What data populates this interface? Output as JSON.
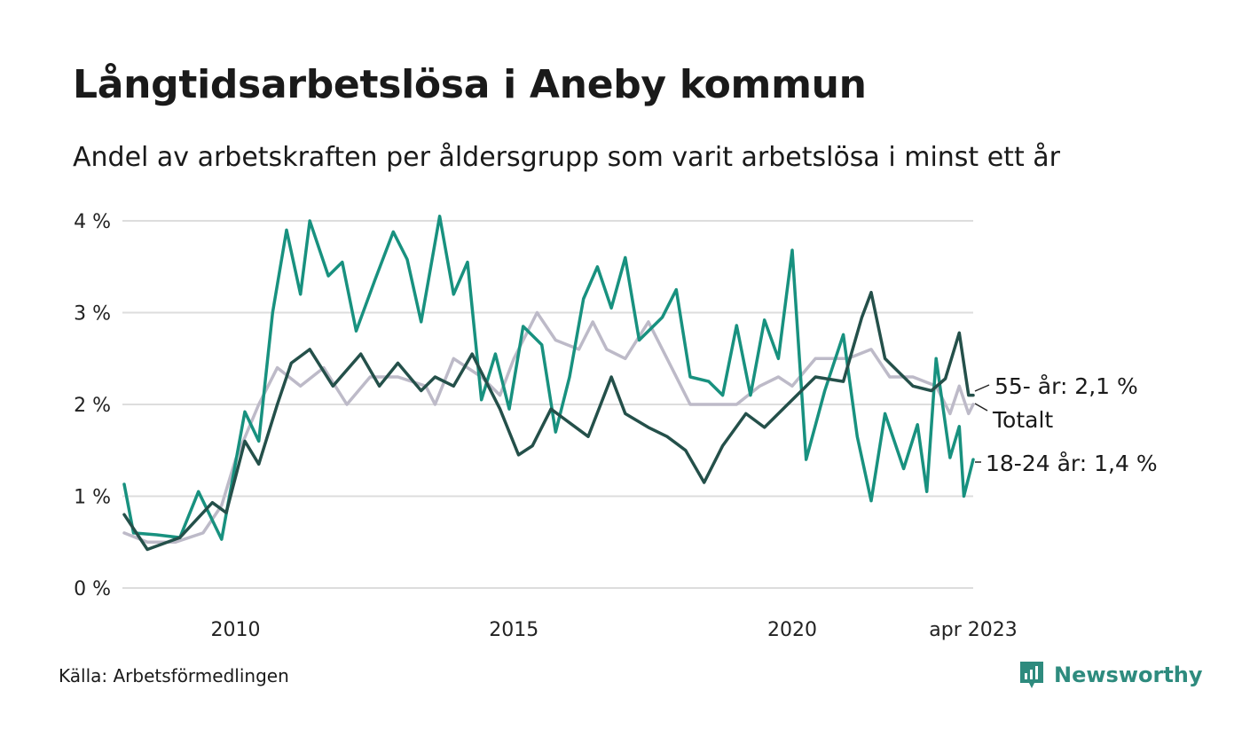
{
  "title": "Långtidsarbetslösa i Aneby kommun",
  "subtitle": "Andel av arbetskraften per åldersgrupp som varit arbetslösa i minst ett år",
  "source": "Källa: Arbetsförmedlingen",
  "brand": "Newsworthy",
  "colors": {
    "youth": "#18917f",
    "old": "#24504a",
    "total": "#bdbac8",
    "grid": "#dddddd",
    "brand": "#2e8b7e"
  },
  "chart_data": {
    "type": "line",
    "y_unit": "%",
    "ylim": [
      0,
      4.1
    ],
    "y_ticks": [
      {
        "v": 0,
        "label": "0 %"
      },
      {
        "v": 1,
        "label": "1 %"
      },
      {
        "v": 2,
        "label": "2 %"
      },
      {
        "v": 3,
        "label": "3 %"
      },
      {
        "v": 4,
        "label": "4 %"
      }
    ],
    "x_ticks": [
      {
        "x": "2010-01",
        "label": "2010"
      },
      {
        "x": "2015-01",
        "label": "2015"
      },
      {
        "x": "2020-01",
        "label": "2020"
      },
      {
        "x": "2023-04",
        "label": "apr 2023"
      }
    ],
    "x_range": [
      "2008-01",
      "2023-04"
    ],
    "grid": true,
    "series": [
      {
        "name": "Totalt",
        "label": "Totalt",
        "color": "#bdbac8",
        "points": [
          [
            "2008-01",
            0.6
          ],
          [
            "2008-06",
            0.5
          ],
          [
            "2008-12",
            0.5
          ],
          [
            "2009-06",
            0.6
          ],
          [
            "2009-10",
            0.9
          ],
          [
            "2010-01",
            1.4
          ],
          [
            "2010-06",
            2.0
          ],
          [
            "2010-10",
            2.4
          ],
          [
            "2011-03",
            2.2
          ],
          [
            "2011-08",
            2.4
          ],
          [
            "2012-01",
            2.0
          ],
          [
            "2012-06",
            2.3
          ],
          [
            "2012-12",
            2.3
          ],
          [
            "2013-06",
            2.2
          ],
          [
            "2013-08",
            2.0
          ],
          [
            "2013-12",
            2.5
          ],
          [
            "2014-06",
            2.3
          ],
          [
            "2014-10",
            2.1
          ],
          [
            "2015-01",
            2.5
          ],
          [
            "2015-06",
            3.0
          ],
          [
            "2015-10",
            2.7
          ],
          [
            "2016-03",
            2.6
          ],
          [
            "2016-06",
            2.9
          ],
          [
            "2016-09",
            2.6
          ],
          [
            "2017-01",
            2.5
          ],
          [
            "2017-06",
            2.9
          ],
          [
            "2017-10",
            2.5
          ],
          [
            "2018-03",
            2.0
          ],
          [
            "2018-08",
            2.0
          ],
          [
            "2019-01",
            2.0
          ],
          [
            "2019-06",
            2.2
          ],
          [
            "2019-10",
            2.3
          ],
          [
            "2020-01",
            2.2
          ],
          [
            "2020-06",
            2.5
          ],
          [
            "2021-01",
            2.5
          ],
          [
            "2021-06",
            2.6
          ],
          [
            "2021-10",
            2.3
          ],
          [
            "2022-03",
            2.3
          ],
          [
            "2022-08",
            2.2
          ],
          [
            "2022-11",
            1.9
          ],
          [
            "2023-01",
            2.2
          ],
          [
            "2023-03",
            1.9
          ],
          [
            "2023-04",
            2.0
          ]
        ]
      },
      {
        "name": "18-24 år",
        "label": "18-24 år: 1,4 %",
        "color": "#18917f",
        "points": [
          [
            "2008-01",
            1.13
          ],
          [
            "2008-03",
            0.6
          ],
          [
            "2008-08",
            0.58
          ],
          [
            "2009-01",
            0.55
          ],
          [
            "2009-05",
            1.05
          ],
          [
            "2009-10",
            0.53
          ],
          [
            "2010-03",
            1.92
          ],
          [
            "2010-06",
            1.6
          ],
          [
            "2010-09",
            3.0
          ],
          [
            "2010-12",
            3.9
          ],
          [
            "2011-03",
            3.2
          ],
          [
            "2011-05",
            4.0
          ],
          [
            "2011-09",
            3.4
          ],
          [
            "2011-12",
            3.55
          ],
          [
            "2012-03",
            2.8
          ],
          [
            "2012-07",
            3.35
          ],
          [
            "2012-11",
            3.88
          ],
          [
            "2013-02",
            3.58
          ],
          [
            "2013-05",
            2.9
          ],
          [
            "2013-09",
            4.05
          ],
          [
            "2013-12",
            3.2
          ],
          [
            "2014-03",
            3.55
          ],
          [
            "2014-06",
            2.05
          ],
          [
            "2014-09",
            2.55
          ],
          [
            "2014-12",
            1.95
          ],
          [
            "2015-03",
            2.85
          ],
          [
            "2015-07",
            2.65
          ],
          [
            "2015-10",
            1.7
          ],
          [
            "2016-01",
            2.3
          ],
          [
            "2016-04",
            3.15
          ],
          [
            "2016-07",
            3.5
          ],
          [
            "2016-10",
            3.05
          ],
          [
            "2017-01",
            3.6
          ],
          [
            "2017-04",
            2.7
          ],
          [
            "2017-09",
            2.95
          ],
          [
            "2017-12",
            3.25
          ],
          [
            "2018-03",
            2.3
          ],
          [
            "2018-07",
            2.25
          ],
          [
            "2018-10",
            2.1
          ],
          [
            "2019-01",
            2.86
          ],
          [
            "2019-04",
            2.1
          ],
          [
            "2019-07",
            2.92
          ],
          [
            "2019-10",
            2.5
          ],
          [
            "2020-01",
            3.68
          ],
          [
            "2020-04",
            1.4
          ],
          [
            "2020-08",
            2.15
          ],
          [
            "2020-12",
            2.76
          ],
          [
            "2021-03",
            1.65
          ],
          [
            "2021-06",
            0.95
          ],
          [
            "2021-09",
            1.9
          ],
          [
            "2022-01",
            1.3
          ],
          [
            "2022-04",
            1.78
          ],
          [
            "2022-06",
            1.05
          ],
          [
            "2022-08",
            2.5
          ],
          [
            "2022-11",
            1.42
          ],
          [
            "2023-01",
            1.76
          ],
          [
            "2023-02",
            1.0
          ],
          [
            "2023-04",
            1.4
          ]
        ]
      },
      {
        "name": "55- år",
        "label": "55- år: 2,1 %",
        "color": "#24504a",
        "points": [
          [
            "2008-01",
            0.8
          ],
          [
            "2008-06",
            0.42
          ],
          [
            "2009-01",
            0.55
          ],
          [
            "2009-08",
            0.93
          ],
          [
            "2009-11",
            0.82
          ],
          [
            "2010-03",
            1.6
          ],
          [
            "2010-06",
            1.35
          ],
          [
            "2010-10",
            2.0
          ],
          [
            "2011-01",
            2.45
          ],
          [
            "2011-05",
            2.6
          ],
          [
            "2011-10",
            2.2
          ],
          [
            "2012-04",
            2.55
          ],
          [
            "2012-08",
            2.2
          ],
          [
            "2012-12",
            2.45
          ],
          [
            "2013-05",
            2.15
          ],
          [
            "2013-08",
            2.3
          ],
          [
            "2013-12",
            2.2
          ],
          [
            "2014-04",
            2.55
          ],
          [
            "2014-10",
            1.95
          ],
          [
            "2015-02",
            1.45
          ],
          [
            "2015-05",
            1.55
          ],
          [
            "2015-09",
            1.95
          ],
          [
            "2016-01",
            1.8
          ],
          [
            "2016-05",
            1.65
          ],
          [
            "2016-10",
            2.3
          ],
          [
            "2017-01",
            1.9
          ],
          [
            "2017-06",
            1.75
          ],
          [
            "2017-10",
            1.65
          ],
          [
            "2018-02",
            1.5
          ],
          [
            "2018-06",
            1.15
          ],
          [
            "2018-10",
            1.55
          ],
          [
            "2019-03",
            1.9
          ],
          [
            "2019-07",
            1.75
          ],
          [
            "2019-12",
            2.0
          ],
          [
            "2020-06",
            2.3
          ],
          [
            "2020-12",
            2.25
          ],
          [
            "2021-04",
            2.95
          ],
          [
            "2021-06",
            3.22
          ],
          [
            "2021-09",
            2.5
          ],
          [
            "2022-03",
            2.2
          ],
          [
            "2022-07",
            2.15
          ],
          [
            "2022-10",
            2.28
          ],
          [
            "2023-01",
            2.78
          ],
          [
            "2023-03",
            2.1
          ],
          [
            "2023-04",
            2.1
          ]
        ]
      }
    ]
  }
}
